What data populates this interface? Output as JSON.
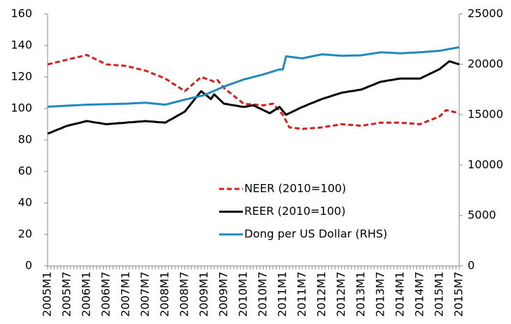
{
  "chart_data": {
    "type": "line",
    "categories": [
      "2005M1",
      null,
      null,
      null,
      null,
      null,
      "2005M7",
      null,
      null,
      null,
      null,
      null,
      "2006M1",
      null,
      null,
      null,
      null,
      null,
      "2006M7",
      null,
      null,
      null,
      null,
      null,
      "2007M1",
      null,
      null,
      null,
      null,
      null,
      "2007M7",
      null,
      null,
      null,
      null,
      null,
      "2008M1",
      null,
      null,
      null,
      null,
      null,
      "2008M7",
      null,
      null,
      null,
      null,
      null,
      "2009M1",
      null,
      null,
      null,
      null,
      null,
      "2009M7",
      null,
      null,
      null,
      null,
      null,
      "2010M1",
      null,
      null,
      null,
      null,
      null,
      "2010M7",
      null,
      null,
      null,
      null,
      null,
      "2011M1",
      null,
      null,
      null,
      null,
      null,
      "2011M7",
      null,
      null,
      null,
      null,
      null,
      "2012M1",
      null,
      null,
      null,
      null,
      null,
      "2012M7",
      null,
      null,
      null,
      null,
      null,
      "2013M1",
      null,
      null,
      null,
      null,
      null,
      "2013M7",
      null,
      null,
      null,
      null,
      null,
      "2014M1",
      null,
      null,
      null,
      null,
      null,
      "2014M7",
      null,
      null,
      null,
      null,
      null,
      "2015M1",
      null,
      null,
      null,
      null,
      null,
      "2015M7"
    ],
    "series": [
      {
        "name": "NEER (2010=100)",
        "color": "#e31a1c",
        "dashed": true,
        "values": [
          128,
          128.5,
          129,
          129.5,
          130,
          130.5,
          131,
          131.5,
          132,
          132.5,
          133,
          133.5,
          134,
          133,
          132,
          131,
          130,
          129,
          128,
          127.8,
          127.7,
          127.5,
          127.3,
          127.2,
          127,
          126.5,
          126,
          125.5,
          125,
          124.5,
          124,
          123.2,
          122.3,
          121.5,
          120.7,
          119.8,
          119,
          117.7,
          116.3,
          115,
          113.7,
          112.3,
          111,
          112.8,
          114.6,
          116.4,
          118.2,
          120,
          119.3,
          118.5,
          117.8,
          117,
          118,
          115.5,
          113,
          111.3,
          109.7,
          108,
          106.3,
          104.7,
          103,
          102.8,
          102.7,
          102.5,
          102.3,
          102.2,
          102,
          102.3,
          102.7,
          103,
          100.7,
          98.3,
          96,
          92,
          88,
          87.8,
          87.5,
          87.3,
          87,
          87.2,
          87.3,
          87.5,
          87.7,
          87.8,
          88,
          88.3,
          88.7,
          89,
          89.3,
          89.7,
          90,
          89.8,
          89.7,
          89.5,
          89.3,
          89.2,
          89,
          89.3,
          89.7,
          90,
          90.3,
          90.7,
          91,
          91,
          91,
          91,
          91,
          91,
          91,
          90.8,
          90.7,
          90.5,
          90.3,
          90.2,
          90,
          90.8,
          91.7,
          92.5,
          93.3,
          94.2,
          95,
          97,
          99,
          98.5,
          98,
          97.5,
          97
        ]
      },
      {
        "name": "REER (2010=100)",
        "color": "#000000",
        "values": [
          84,
          84.8,
          85.7,
          86.5,
          87.3,
          88.2,
          89,
          89.5,
          90,
          90.5,
          91,
          91.5,
          92,
          91.7,
          91.3,
          91,
          90.7,
          90.3,
          90,
          90.2,
          90.3,
          90.5,
          90.7,
          90.8,
          91,
          91.2,
          91.3,
          91.5,
          91.7,
          91.8,
          92,
          91.8,
          91.7,
          91.5,
          91.3,
          91.2,
          91,
          92.2,
          93.3,
          94.5,
          95.7,
          96.8,
          98,
          100.6,
          103.2,
          105.8,
          108.4,
          111,
          109.3,
          107.7,
          106,
          109,
          107,
          105,
          103,
          102.7,
          102.3,
          102,
          101.7,
          101.3,
          101,
          101.3,
          101.7,
          102,
          101,
          100,
          99,
          98,
          97,
          98.3,
          99.7,
          101,
          98.5,
          96,
          97,
          98,
          99,
          100,
          101,
          101.8,
          102.7,
          103.5,
          104.3,
          105.2,
          106,
          106.7,
          107.3,
          108,
          108.7,
          109.3,
          110,
          110.3,
          110.7,
          111,
          111.3,
          111.7,
          112,
          112.8,
          113.7,
          114.5,
          115.3,
          116.2,
          117,
          117.3,
          117.7,
          118,
          118.3,
          118.7,
          119,
          119,
          119,
          119,
          119,
          119,
          119,
          120,
          121,
          122,
          123,
          124,
          125,
          126.7,
          128.3,
          130,
          129.3,
          128.7,
          128
        ]
      },
      {
        "name": "Dong per US Dollar (RHS)",
        "color": "#1f8bbd",
        "axis": "y2",
        "values": [
          15800,
          15817,
          15833,
          15850,
          15867,
          15883,
          15900,
          15917,
          15933,
          15950,
          15967,
          15983,
          16000,
          16008,
          16017,
          16025,
          16033,
          16042,
          16050,
          16058,
          16067,
          16075,
          16083,
          16092,
          16100,
          16117,
          16133,
          16150,
          16167,
          16183,
          16200,
          16167,
          16133,
          16100,
          16067,
          16033,
          16000,
          16083,
          16167,
          16250,
          16333,
          16417,
          16500,
          16575,
          16650,
          16725,
          16800,
          16875,
          16950,
          17092,
          17233,
          17375,
          17517,
          17658,
          17800,
          17917,
          18033,
          18150,
          18267,
          18383,
          18500,
          18583,
          18667,
          18750,
          18833,
          18917,
          19000,
          19100,
          19200,
          19300,
          19400,
          19500,
          19500,
          20800,
          20760,
          20720,
          20680,
          20640,
          20600,
          20667,
          20733,
          20800,
          20867,
          20933,
          21000,
          20975,
          20950,
          20925,
          20900,
          20875,
          20850,
          20858,
          20867,
          20875,
          20883,
          20892,
          20900,
          20950,
          21000,
          21050,
          21100,
          21150,
          21200,
          21183,
          21167,
          21150,
          21133,
          21117,
          21100,
          21117,
          21133,
          21150,
          21167,
          21183,
          21200,
          21225,
          21250,
          21275,
          21300,
          21325,
          21350,
          21408,
          21467,
          21525,
          21583,
          21642,
          21700
        ]
      }
    ],
    "ylim": [
      0,
      160
    ],
    "yticks": [
      0,
      20,
      40,
      60,
      80,
      100,
      120,
      140,
      160
    ],
    "y2lim": [
      0,
      25000
    ],
    "y2ticks": [
      0,
      5000,
      10000,
      15000,
      20000,
      25000
    ],
    "grid": false,
    "legend": "center"
  }
}
